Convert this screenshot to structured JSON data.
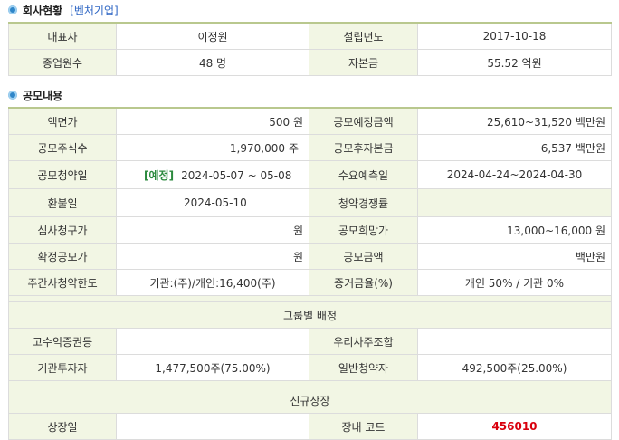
{
  "company": {
    "title": "회사현황",
    "tag": "[벤처기업]",
    "rows": [
      [
        "대표자",
        "이정원",
        "설립년도",
        "2017-10-18"
      ],
      [
        "종업원수",
        "48 명",
        "자본금",
        "55.52 억원"
      ]
    ]
  },
  "offering": {
    "title": "공모내용",
    "face_value_label": "액면가",
    "face_value": "500 원",
    "planned_amount_label": "공모예정금액",
    "planned_amount": "25,610~31,520 백만원",
    "shares_label": "공모주식수",
    "shares": "1,970,000",
    "shares_unit": "주",
    "post_capital_label": "공모후자본금",
    "post_capital": "6,537 백만원",
    "subscription_label": "공모청약일",
    "subscription_badge": "[예정]",
    "subscription_dates": "2024-05-07 ~ 05-08",
    "demand_label": "수요예측일",
    "demand_dates": "2024-04-24~2024-04-30",
    "refund_label": "환불일",
    "refund_date": "2024-05-10",
    "competition_label": "청약경쟁률",
    "competition": "",
    "review_price_label": "심사청구가",
    "review_price": "원",
    "desired_price_label": "공모희망가",
    "desired_price": "13,000~16,000 원",
    "final_price_label": "확정공모가",
    "final_price": "원",
    "final_amount_label": "공모금액",
    "final_amount": "백만원",
    "limit_label": "주간사청약한도",
    "limit": "기관:(주)/개인:16,400(주)",
    "deposit_label": "증거금율(%)",
    "deposit": "개인 50% / 기관 0%"
  },
  "allocation": {
    "title": "그룹별 배정",
    "high_yield_label": "고수익증권등",
    "high_yield": "",
    "esop_label": "우리사주조합",
    "esop": "",
    "institution_label": "기관투자자",
    "institution": "1,477,500주(75.00%)",
    "retail_label": "일반청약자",
    "retail": "492,500주(25.00%)"
  },
  "listing": {
    "title": "신규상장",
    "date_label": "상장일",
    "date": "",
    "code_label": "장내 코드",
    "code": "456010"
  }
}
